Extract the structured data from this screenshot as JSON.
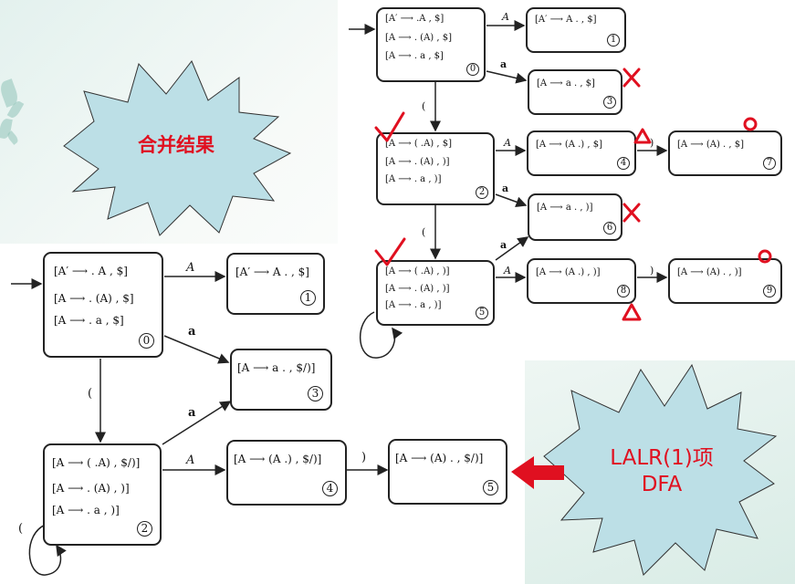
{
  "burst_merge": {
    "label": "合并结果",
    "fill": "#bcdfe6",
    "text_color": "#e01020"
  },
  "burst_lalr": {
    "label_line1": "LALR(1)项",
    "label_line2": "DFA",
    "fill": "#bcdfe6",
    "text_color": "#e01020"
  },
  "arrow_color": "#e01020",
  "mark_color": "#e01020",
  "lr1_dfa": {
    "states": [
      {
        "id": "0",
        "items": [
          "[A′ ⟶ .A , $]",
          "[A ⟶ . (A) , $]",
          "[A ⟶ . a , $]"
        ]
      },
      {
        "id": "1",
        "items": [
          "[A′ ⟶ A . , $]"
        ]
      },
      {
        "id": "3",
        "items": [
          "[A ⟶ a . , $]"
        ]
      },
      {
        "id": "2",
        "items": [
          "[A ⟶ ( .A) , $]",
          "[A ⟶ . (A) , )]",
          "[A ⟶ . a , )]"
        ]
      },
      {
        "id": "4",
        "items": [
          "[A ⟶ (A .) , $]"
        ]
      },
      {
        "id": "7",
        "items": [
          "[A ⟶ (A) . , $]"
        ]
      },
      {
        "id": "6",
        "items": [
          "[A ⟶ a . , )]"
        ]
      },
      {
        "id": "5",
        "items": [
          "[A ⟶ ( .A) , )]",
          "[A ⟶ . (A) , )]",
          "[A ⟶ . a , )]"
        ]
      },
      {
        "id": "8",
        "items": [
          "[A ⟶ (A .) , )]"
        ]
      },
      {
        "id": "9",
        "items": [
          "[A ⟶ (A) . , )]"
        ]
      }
    ],
    "edge_labels": {
      "e01": "A",
      "e03": "a",
      "e02": "(",
      "e24": "A",
      "e47": ")",
      "e26": "a",
      "e25": "(",
      "e56": "a",
      "e58": "A",
      "e89": ")"
    }
  },
  "lalr_dfa": {
    "states": [
      {
        "id": "0",
        "items": [
          "[A′ ⟶ . A , $]",
          "[A ⟶ . (A) , $]",
          "[A ⟶ . a , $]"
        ]
      },
      {
        "id": "1",
        "items": [
          "[A′ ⟶ A . , $]"
        ]
      },
      {
        "id": "3",
        "items": [
          "[A ⟶ a . , $/)]"
        ]
      },
      {
        "id": "2",
        "items": [
          "[A ⟶ ( .A) , $/)]",
          "[A ⟶ . (A) , )]",
          "[A ⟶ . a , )]"
        ]
      },
      {
        "id": "4",
        "items": [
          "[A ⟶ (A .) , $/)]"
        ]
      },
      {
        "id": "5",
        "items": [
          "[A ⟶ (A) . , $/)]"
        ]
      }
    ],
    "edge_labels": {
      "e01": "A",
      "e03": "a",
      "e02": "(",
      "e23": "a",
      "e24": "A",
      "e45": ")",
      "e22": "("
    }
  }
}
